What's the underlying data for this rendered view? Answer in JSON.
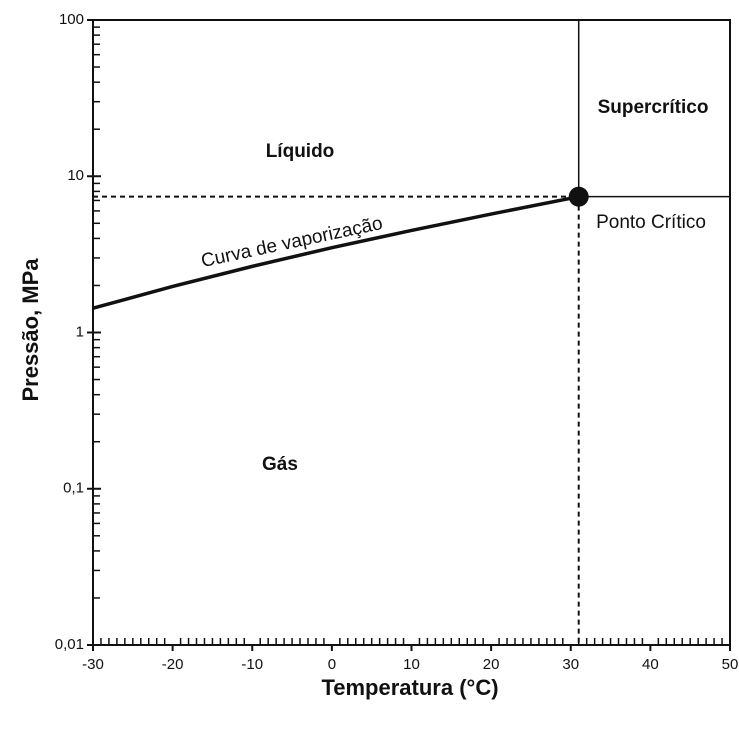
{
  "chart_data": {
    "type": "line",
    "x_label": "Temperatura (°C)",
    "y_label": "Pressão, MPa",
    "annotations": [
      "Líquido",
      "Supercrítico",
      "Gás",
      "Ponto Crítico",
      "Curva de vaporização"
    ],
    "x": [
      -30,
      -20,
      -10,
      0,
      10,
      20,
      31
    ],
    "series": [
      {
        "color": "#111111",
        "values": [
          1.43,
          1.97,
          2.65,
          3.49,
          4.5,
          5.73,
          7.4
        ]
      }
    ],
    "critical_point": {
      "x": 31,
      "y": 7.4
    },
    "xlim": [
      -30,
      50
    ],
    "xticks": [
      -30,
      -20,
      -10,
      0,
      10,
      20,
      30,
      40,
      50
    ],
    "ylim": [
      0.01,
      100
    ],
    "yticks": [
      {
        "value": 0.01,
        "label": "0,01"
      },
      {
        "value": 0.1,
        "label": "0,1"
      },
      1,
      10,
      100
    ],
    "y_log": true
  }
}
